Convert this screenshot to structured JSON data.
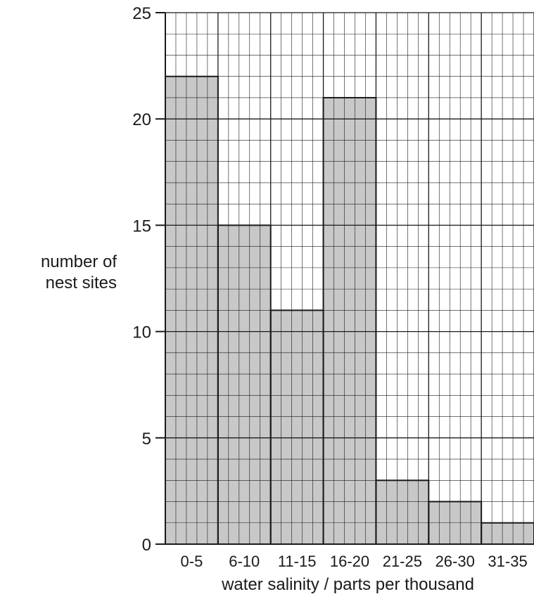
{
  "chart_data": {
    "type": "bar",
    "title": "",
    "xlabel": "water salinity / parts per thousand",
    "ylabel_lines": [
      "number of",
      "nest sites"
    ],
    "categories": [
      "0-5",
      "6-10",
      "11-15",
      "16-20",
      "21-25",
      "26-30",
      "31-35"
    ],
    "values": [
      22,
      15,
      11,
      21,
      3,
      2,
      1
    ],
    "ylim": [
      0,
      25
    ],
    "yticks": [
      0,
      5,
      10,
      15,
      20,
      25
    ],
    "grid": true,
    "bar_color": "#c8c8c8",
    "grid_color": "#1a1a1a"
  }
}
